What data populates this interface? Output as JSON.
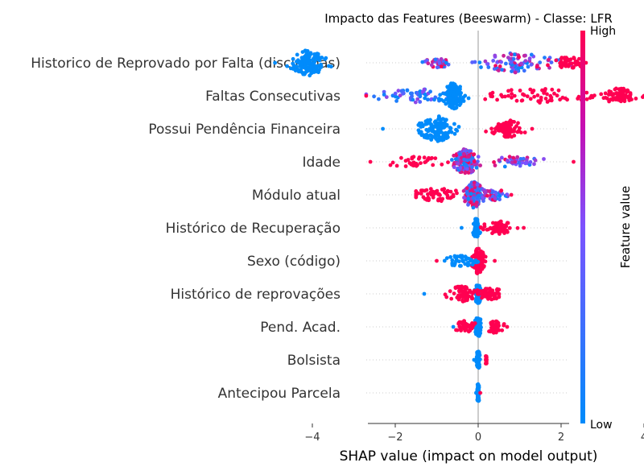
{
  "chart_data": {
    "type": "scatter",
    "subtype": "beeswarm",
    "title": "Impacto das Features (Beeswarm) - Classe: LFR",
    "xlabel": "SHAP value (impact on model output)",
    "xlim": [
      -5.3,
      4.3
    ],
    "xticks": [
      -4,
      -2,
      0,
      2,
      4
    ],
    "xtick_labels": [
      "−4",
      "−2",
      "0",
      "2",
      "4"
    ],
    "colorbar": {
      "label": "Feature value",
      "high": "High",
      "low": "Low",
      "low_color": "#008bfb",
      "high_color": "#ff0051"
    },
    "features": [
      {
        "name": "Historico de Reprovado por Falta (disciplinas)",
        "clusters": [
          {
            "center": -4.1,
            "spread": 0.35,
            "size": 1.0,
            "color": "low"
          },
          {
            "center": -1.0,
            "spread": 0.25,
            "size": 0.25,
            "color": "mix"
          },
          {
            "center": 0.9,
            "spread": 0.8,
            "size": 0.7,
            "color": "mix"
          },
          {
            "center": 2.2,
            "spread": 0.3,
            "size": 0.35,
            "color": "high"
          }
        ],
        "min": -4.9,
        "max": 2.6
      },
      {
        "name": "Faltas Consecutivas",
        "clusters": [
          {
            "center": -1.5,
            "spread": 0.7,
            "size": 0.45,
            "color": "mixlow"
          },
          {
            "center": -0.6,
            "spread": 0.2,
            "size": 1.0,
            "color": "low"
          },
          {
            "center": 1.5,
            "spread": 1.3,
            "size": 0.45,
            "color": "high"
          },
          {
            "center": 3.4,
            "spread": 0.3,
            "size": 0.5,
            "color": "high"
          }
        ],
        "min": -2.7,
        "max": 4.0
      },
      {
        "name": "Possui Pendência Financeira",
        "clusters": [
          {
            "center": -1.0,
            "spread": 0.35,
            "size": 1.0,
            "color": "low"
          },
          {
            "center": 0.7,
            "spread": 0.3,
            "size": 0.6,
            "color": "high"
          }
        ],
        "min": -2.3,
        "max": 1.3
      },
      {
        "name": "Idade",
        "clusters": [
          {
            "center": -0.3,
            "spread": 0.25,
            "size": 1.0,
            "color": "mix"
          },
          {
            "center": -1.5,
            "spread": 0.6,
            "size": 0.25,
            "color": "high"
          },
          {
            "center": 0.9,
            "spread": 0.5,
            "size": 0.3,
            "color": "mix"
          }
        ],
        "min": -2.6,
        "max": 2.3
      },
      {
        "name": "Módulo atual",
        "clusters": [
          {
            "center": -0.1,
            "spread": 0.2,
            "size": 1.0,
            "color": "mix"
          },
          {
            "center": -1.0,
            "spread": 0.45,
            "size": 0.4,
            "color": "high"
          },
          {
            "center": 0.4,
            "spread": 0.3,
            "size": 0.3,
            "color": "mix"
          }
        ],
        "min": -1.5,
        "max": 0.8
      },
      {
        "name": "Histórico de Recuperação",
        "clusters": [
          {
            "center": -0.05,
            "spread": 0.05,
            "size": 0.7,
            "color": "low"
          },
          {
            "center": 0.5,
            "spread": 0.3,
            "size": 0.4,
            "color": "high"
          }
        ],
        "min": -0.4,
        "max": 1.1
      },
      {
        "name": "Sexo (código)",
        "clusters": [
          {
            "center": 0.0,
            "spread": 0.1,
            "size": 1.0,
            "color": "high"
          },
          {
            "center": -0.4,
            "spread": 0.3,
            "size": 0.3,
            "color": "low"
          }
        ],
        "min": -1.0,
        "max": 0.4
      },
      {
        "name": "Histórico de reprovações",
        "clusters": [
          {
            "center": 0.0,
            "spread": 0.05,
            "size": 0.7,
            "color": "low"
          },
          {
            "center": -0.4,
            "spread": 0.3,
            "size": 0.5,
            "color": "high"
          },
          {
            "center": 0.3,
            "spread": 0.2,
            "size": 0.35,
            "color": "high"
          }
        ],
        "min": -1.3,
        "max": 0.5
      },
      {
        "name": "Pend. Acad.",
        "clusters": [
          {
            "center": 0.0,
            "spread": 0.05,
            "size": 0.7,
            "color": "low"
          },
          {
            "center": -0.3,
            "spread": 0.2,
            "size": 0.35,
            "color": "high"
          },
          {
            "center": 0.4,
            "spread": 0.15,
            "size": 0.35,
            "color": "high"
          }
        ],
        "min": -0.6,
        "max": 0.7
      },
      {
        "name": "Bolsista",
        "clusters": [
          {
            "center": 0.0,
            "spread": 0.03,
            "size": 0.6,
            "color": "low"
          },
          {
            "center": 0.2,
            "spread": 0.02,
            "size": 0.15,
            "color": "high"
          }
        ],
        "min": -0.1,
        "max": 0.2
      },
      {
        "name": "Antecipou Parcela",
        "clusters": [
          {
            "center": 0.0,
            "spread": 0.02,
            "size": 0.6,
            "color": "low"
          }
        ],
        "min": -0.05,
        "max": 0.05
      }
    ]
  }
}
